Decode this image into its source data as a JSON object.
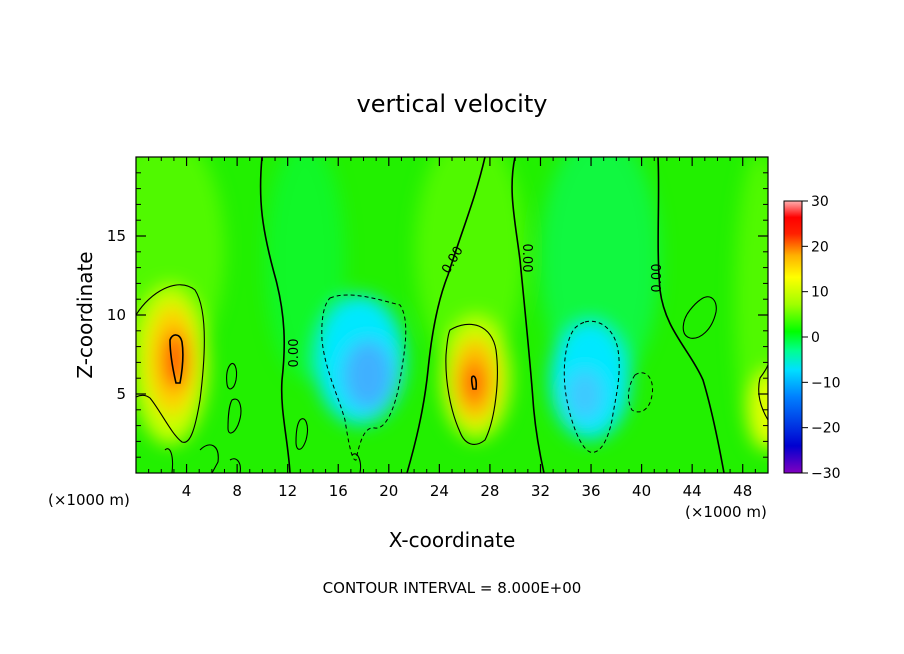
{
  "chart_data": {
    "type": "heatmap",
    "title": "vertical velocity",
    "xlabel": "X-coordinate",
    "ylabel": "Z-coordinate",
    "x_unit_left": "(×1000 m)",
    "x_unit_right": "(×1000 m)",
    "footer": "CONTOUR INTERVAL = 8.000E+00",
    "xlim": [
      0,
      50
    ],
    "ylim": [
      0,
      20
    ],
    "x_ticks": [
      4,
      8,
      12,
      16,
      20,
      24,
      28,
      32,
      36,
      40,
      44,
      48
    ],
    "x_tick_labels": [
      "4",
      "8",
      "12",
      "16",
      "20",
      "24",
      "28",
      "32",
      "36",
      "40",
      "44",
      "48"
    ],
    "y_ticks": [
      5,
      10,
      15
    ],
    "y_tick_labels": [
      "5",
      "10",
      "15"
    ],
    "colorbar": {
      "min": -30,
      "max": 30,
      "ticks": [
        30,
        20,
        10,
        0,
        -10,
        -20,
        -30
      ],
      "tick_labels": [
        "30",
        "20",
        "10",
        "0",
        "−10",
        "−20",
        "−30"
      ],
      "colors": [
        "#8000c0",
        "#0000d0",
        "#0080ff",
        "#00e0ff",
        "#00ff80",
        "#00ff00",
        "#a0ff00",
        "#ffff00",
        "#ffb000",
        "#ff4000",
        "#ff0000",
        "#ff9090"
      ]
    },
    "contour_labels": [
      "0.00",
      "0.00",
      "0.00",
      "0.00"
    ],
    "features": [
      {
        "x": 3,
        "z": 7.5,
        "value": 17
      },
      {
        "x": 18.5,
        "z": 6,
        "value": -9
      },
      {
        "x": 27,
        "z": 6,
        "value": 17
      },
      {
        "x": 35,
        "z": 5,
        "value": -8
      },
      {
        "x": 50,
        "z": 4,
        "value": 7
      }
    ],
    "grid": false
  }
}
